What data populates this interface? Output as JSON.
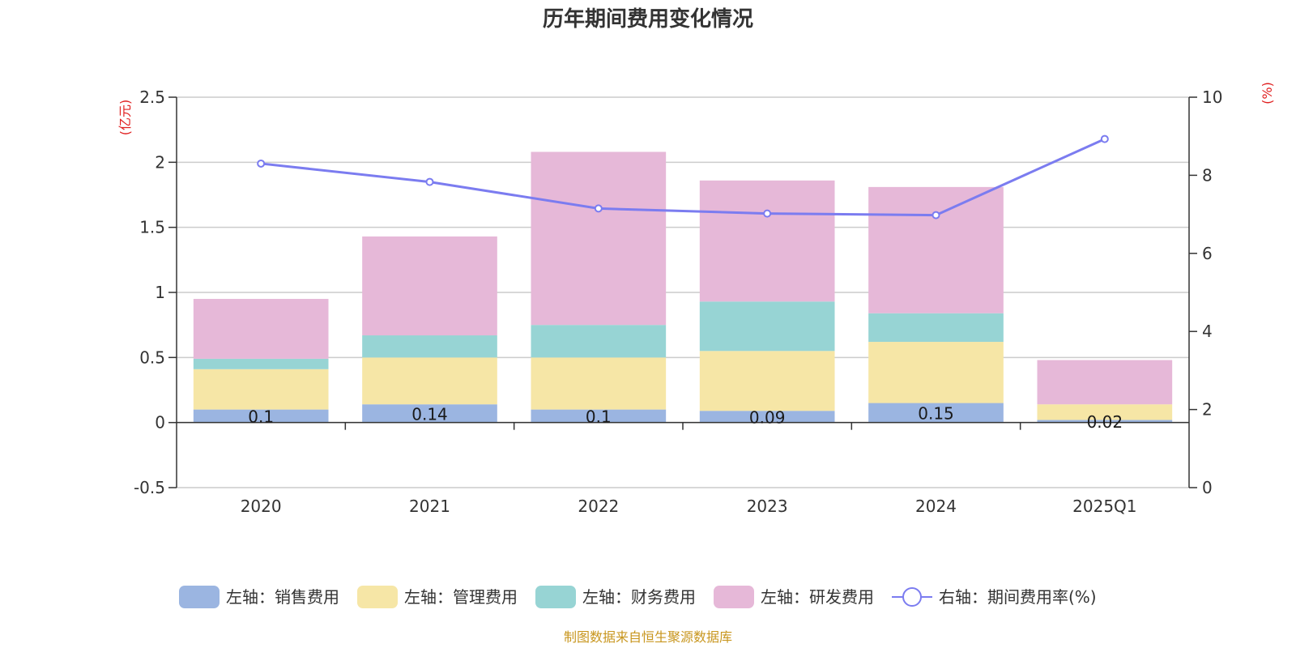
{
  "chart_data": {
    "type": "bar",
    "stacked": true,
    "title": "历年期间费用变化情况",
    "categories": [
      "2020",
      "2021",
      "2022",
      "2023",
      "2024",
      "2025Q1"
    ],
    "left_axis": {
      "unit": "(亿元)",
      "ylim": [
        -0.5,
        2.5
      ],
      "ticks": [
        "-0.5",
        "0",
        "0.5",
        "1",
        "1.5",
        "2",
        "2.5"
      ]
    },
    "right_axis": {
      "unit": "(%)",
      "ylim": [
        0,
        10
      ],
      "ticks": [
        "0",
        "2",
        "4",
        "6",
        "8",
        "10"
      ]
    },
    "series": [
      {
        "name": "左轴：销售费用",
        "color": "#9bb5e1",
        "values": [
          0.1,
          0.14,
          0.1,
          0.09,
          0.15,
          0.02
        ],
        "labels": [
          "0.1",
          "0.14",
          "0.1",
          "0.09",
          "0.15",
          "0.02"
        ]
      },
      {
        "name": "左轴：管理费用",
        "color": "#f6e6a6",
        "values": [
          0.31,
          0.36,
          0.4,
          0.46,
          0.47,
          0.12
        ]
      },
      {
        "name": "左轴：财务费用",
        "color": "#97d4d4",
        "values": [
          0.08,
          0.17,
          0.25,
          0.38,
          0.22,
          0.0
        ]
      },
      {
        "name": "左轴：研发费用",
        "color": "#e6b8d8",
        "values": [
          0.46,
          0.76,
          1.33,
          0.93,
          0.97,
          0.34
        ]
      }
    ],
    "line_series": {
      "name": "右轴：期间费用率(%)",
      "color": "#7b7cf0",
      "axis": "right",
      "values": [
        8.3,
        7.83,
        7.15,
        7.02,
        6.98,
        8.93
      ]
    },
    "legend_position": "bottom",
    "grid": true
  },
  "source_text": "制图数据来自恒生聚源数据库"
}
